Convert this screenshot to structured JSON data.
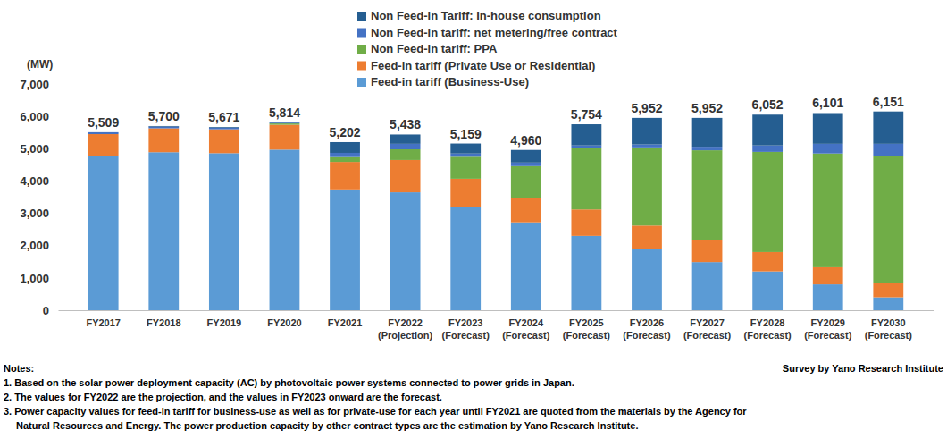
{
  "chart_data": {
    "type": "bar",
    "stacked": true,
    "grid": false,
    "legend": "top",
    "y_label": "(MW)",
    "categories": [
      "FY2017",
      "FY2018",
      "FY2019",
      "FY2020",
      "FY2021",
      "FY2022\n(Projection)",
      "FY2023\n(Forecast)",
      "FY2024\n(Forecast)",
      "FY2025\n(Forecast)",
      "FY2026\n(Forecast)",
      "FY2027\n(Forecast)",
      "FY2028\n(Forecast)",
      "FY2029\n(Forecast)",
      "FY2030\n(Forecast)"
    ],
    "series": [
      {
        "name": "Feed-in tariff (Business-Use)",
        "color": "#5b9bd5",
        "values": [
          4780,
          4890,
          4860,
          4970,
          3740,
          3650,
          3200,
          2720,
          2300,
          1900,
          1490,
          1200,
          800,
          400
        ]
      },
      {
        "name": "Feed-in tariff (Private Use or Residential)",
        "color": "#ed7d31",
        "values": [
          670,
          740,
          740,
          770,
          850,
          1000,
          870,
          740,
          820,
          720,
          670,
          600,
          530,
          450
        ]
      },
      {
        "name": "Non Feed-in tariff: PPA",
        "color": "#70ad47",
        "values": [
          0,
          0,
          0,
          40,
          150,
          330,
          680,
          1000,
          1900,
          2420,
          2790,
          3100,
          3520,
          3920
        ]
      },
      {
        "name": "Non Feed-in tariff: net metering/free contract",
        "color": "#4472c4",
        "values": [
          59,
          50,
          50,
          24,
          130,
          170,
          100,
          110,
          80,
          90,
          110,
          200,
          300,
          380
        ]
      },
      {
        "name": "Non Feed-in Tariff: In-house consumption",
        "color": "#255e91",
        "values": [
          0,
          20,
          21,
          10,
          332,
          288,
          309,
          390,
          654,
          822,
          892,
          952,
          951,
          1001
        ]
      }
    ],
    "totals": [
      5509,
      5700,
      5671,
      5814,
      5202,
      5438,
      5159,
      4960,
      5754,
      5952,
      5952,
      6052,
      6101,
      6151
    ],
    "total_labels": [
      "5,509",
      "5,700",
      "5,671",
      "5,814",
      "5,202",
      "5,438",
      "5,159",
      "4,960",
      "5,754",
      "5,952",
      "5,952",
      "6,052",
      "6,101",
      "6,151"
    ],
    "ylim": [
      0,
      7000
    ],
    "yticks": [
      0,
      {
        "value": 1000,
        "label": "1,000"
      },
      {
        "value": 2000,
        "label": "2,000"
      },
      {
        "value": 3000,
        "label": "3,000"
      },
      {
        "value": 4000,
        "label": "4,000"
      },
      {
        "value": 5000,
        "label": "5,000"
      },
      {
        "value": 6000,
        "label": "6,000"
      },
      {
        "value": 7000,
        "label": "7,000"
      }
    ],
    "notes_title": "Notes:",
    "notes": [
      "1. Based on the solar power deployment capacity (AC) by photovoltaic power systems connected to power grids in Japan.",
      "2. The values for FY2022 are the projection, and the values in FY2023 onward are the forecast.",
      "3. Power capacity values for feed-in tariff for business-use as well as for private-use for each year until FY2021 are quoted from the materials by the Agency for\nNatural Resources and Energy. The power production capacity by other contract types are the estimation by Yano Research Institute."
    ],
    "source": "Survey by Yano Research Institute"
  }
}
